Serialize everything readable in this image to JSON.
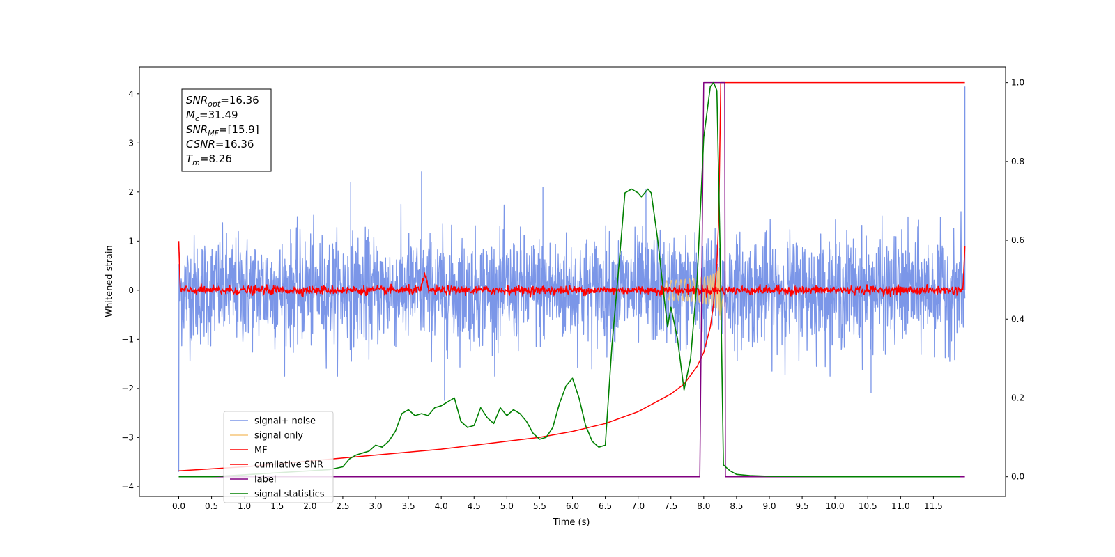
{
  "chart_data": {
    "type": "line",
    "xlabel": "Time (s)",
    "ylabel": "Whitened strain",
    "xlim": [
      -0.6,
      12.6
    ],
    "ylim": [
      -4.2,
      4.55
    ],
    "ylim_right": [
      -0.05,
      1.04
    ],
    "xticks": [
      "0.0",
      "0.5",
      "1.0",
      "1.5",
      "2.0",
      "2.5",
      "3.0",
      "3.5",
      "4.0",
      "4.5",
      "5.0",
      "5.5",
      "6.0",
      "6.5",
      "7.0",
      "7.5",
      "8.0",
      "8.5",
      "9.0",
      "9.5",
      "10.0",
      "10.5",
      "11.0",
      "11.5"
    ],
    "yticks_left": [
      "4",
      "3",
      "2",
      "1",
      "0",
      "−1",
      "−2",
      "−3",
      "−4"
    ],
    "yticks_right": [
      "1.0",
      "0.8",
      "0.6",
      "0.4",
      "0.2",
      "0.0"
    ],
    "grid": false,
    "legend_position": "lower-left",
    "annotation": {
      "lines": [
        {
          "sym": "SNR",
          "sub": "opt",
          "value": "=16.36"
        },
        {
          "sym": "M",
          "sub": "c",
          "value": "=31.49"
        },
        {
          "sym": "SNR",
          "sub": "MF",
          "value": "=[15.9]"
        },
        {
          "sym": "CSNR",
          "sub": "",
          "value": "=16.36"
        },
        {
          "sym": "T",
          "sub": "m",
          "value": "=8.26"
        }
      ]
    },
    "series": [
      {
        "name": "signal+ noise",
        "color": "#7b96e8",
        "axis": "left",
        "description": "whitened noise, amplitude about ±1.5, spikes to 2.4 near t=3.7 and -2.3 near t=4.05",
        "band": [
          -1.5,
          1.5
        ]
      },
      {
        "name": "signal only",
        "color": "#f5c67a",
        "axis": "left",
        "description": "chirp growing toward merger at t≈8.26",
        "peak_time": 8.26,
        "peak_amplitude": 0.75
      },
      {
        "name": "MF",
        "color": "#ff0000",
        "axis": "left",
        "description": "matched filter output near zero, starts 1.0 and ends 0.9, bump 0.3 at t≈3.75"
      },
      {
        "name": "cumilative SNR",
        "color": "#ff0000",
        "axis": "right",
        "x": [
          0.0,
          1.0,
          2.0,
          3.0,
          4.0,
          5.0,
          5.5,
          6.0,
          6.5,
          7.0,
          7.5,
          7.7,
          7.9,
          8.0,
          8.1,
          8.15,
          8.2,
          8.23,
          8.26,
          8.3,
          11.98
        ],
        "y": [
          0.015,
          0.025,
          0.04,
          0.055,
          0.07,
          0.09,
          0.1,
          0.115,
          0.135,
          0.165,
          0.21,
          0.235,
          0.28,
          0.315,
          0.38,
          0.44,
          0.54,
          0.66,
          1.0,
          1.0,
          1.0
        ]
      },
      {
        "name": "label",
        "color": "#800080",
        "axis": "right",
        "x": [
          0.0,
          7.94,
          8.0,
          8.32,
          8.33,
          11.98
        ],
        "y": [
          0.0,
          0.0,
          1.0,
          1.0,
          0.0,
          0.0
        ]
      },
      {
        "name": "signal statistics",
        "color": "#008000",
        "axis": "right",
        "x": [
          0.0,
          0.5,
          1.0,
          1.5,
          2.0,
          2.3,
          2.5,
          2.6,
          2.7,
          2.8,
          2.9,
          3.0,
          3.1,
          3.2,
          3.3,
          3.4,
          3.5,
          3.6,
          3.7,
          3.8,
          3.9,
          4.0,
          4.1,
          4.2,
          4.3,
          4.4,
          4.5,
          4.6,
          4.7,
          4.8,
          4.9,
          5.0,
          5.1,
          5.2,
          5.3,
          5.4,
          5.5,
          5.6,
          5.7,
          5.8,
          5.9,
          6.0,
          6.1,
          6.2,
          6.3,
          6.4,
          6.5,
          6.6,
          6.7,
          6.8,
          6.9,
          7.0,
          7.05,
          7.1,
          7.15,
          7.2,
          7.3,
          7.4,
          7.45,
          7.5,
          7.6,
          7.7,
          7.8,
          7.9,
          8.0,
          8.1,
          8.15,
          8.2,
          8.25,
          8.3,
          8.4,
          8.5,
          8.7,
          9.0,
          10.0,
          11.0,
          11.9
        ],
        "y": [
          0.0,
          0.0,
          0.005,
          0.01,
          0.015,
          0.018,
          0.025,
          0.045,
          0.055,
          0.06,
          0.065,
          0.08,
          0.075,
          0.09,
          0.115,
          0.16,
          0.17,
          0.155,
          0.16,
          0.155,
          0.175,
          0.18,
          0.19,
          0.2,
          0.14,
          0.125,
          0.13,
          0.175,
          0.15,
          0.135,
          0.175,
          0.155,
          0.17,
          0.16,
          0.14,
          0.11,
          0.095,
          0.1,
          0.125,
          0.185,
          0.23,
          0.25,
          0.2,
          0.13,
          0.09,
          0.075,
          0.08,
          0.33,
          0.52,
          0.72,
          0.73,
          0.72,
          0.71,
          0.72,
          0.73,
          0.72,
          0.6,
          0.45,
          0.38,
          0.43,
          0.35,
          0.22,
          0.3,
          0.5,
          0.86,
          0.99,
          1.0,
          0.98,
          0.57,
          0.03,
          0.015,
          0.006,
          0.003,
          0.001,
          0.0,
          0.0,
          0.0
        ]
      }
    ]
  }
}
